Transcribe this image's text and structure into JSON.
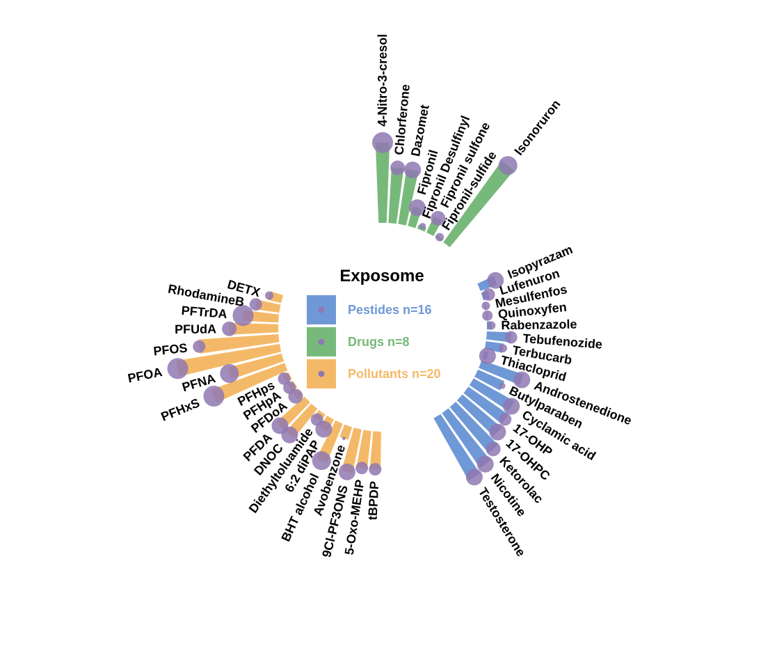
{
  "chart_data": {
    "type": "circular-bar",
    "legend": {
      "title": "Exposome",
      "placement": "center",
      "entries": [
        {
          "label": "Pestides n=16",
          "color": "#6F98D6"
        },
        {
          "label": "Drugs n=8",
          "color": "#77B97A"
        },
        {
          "label": "Pollutants n=20",
          "color": "#F4B968"
        }
      ]
    },
    "bubble_color": "#8F78B2",
    "groups": [
      {
        "name": "Drugs",
        "color": "#77B97A",
        "items": [
          {
            "label": "4-Nitro-3-cresol",
            "value": 3.6,
            "size": 5
          },
          {
            "label": "Chlorferone",
            "value": 2.5,
            "size": 3.5
          },
          {
            "label": "Dazomet",
            "value": 2.5,
            "size": 4
          },
          {
            "label": "Fipronil",
            "value": 0.9,
            "size": 4
          },
          {
            "label": "Fipronil Desulfinyl",
            "value": 0.2,
            "size": 1.5
          },
          {
            "label": "Fipronil sulfone",
            "value": 0.8,
            "size": 3.5
          },
          {
            "label": "Fipronil-sulfide",
            "value": 0.1,
            "size": 2
          },
          {
            "label": "Isonoruron",
            "value": 4.5,
            "size": 4.5
          }
        ]
      },
      {
        "name": "Pestides",
        "color": "#6F98D6",
        "items": [
          {
            "label": "Isopyrazam",
            "value": 0.8,
            "size": 4
          },
          {
            "label": "Lufenuron",
            "value": 0.3,
            "size": 3
          },
          {
            "label": "Mesulfenfos",
            "value": 0.05,
            "size": 2
          },
          {
            "label": "Quinoxyfen",
            "value": 0.05,
            "size": 2.5
          },
          {
            "label": "Rabenzazole",
            "value": 0.2,
            "size": 2
          },
          {
            "label": "Tebufenozide",
            "value": 1.1,
            "size": 3
          },
          {
            "label": "Terbucarb",
            "value": 0.8,
            "size": 2
          },
          {
            "label": "Thiacloprid",
            "value": 0.2,
            "size": 4
          },
          {
            "label": "Androstenedione",
            "value": 2.0,
            "size": 4
          },
          {
            "label": "Butylparaben",
            "value": 1.3,
            "size": 1.5
          },
          {
            "label": "Cyclamic acid",
            "value": 2.1,
            "size": 4
          },
          {
            "label": "17-OHP",
            "value": 2.2,
            "size": 3
          },
          {
            "label": "17-OHPC",
            "value": 2.3,
            "size": 4
          },
          {
            "label": "Ketorolac",
            "value": 2.7,
            "size": 3.5
          },
          {
            "label": "Nicotine",
            "value": 3.0,
            "size": 4
          },
          {
            "label": "Testosterone",
            "value": 3.2,
            "size": 4
          }
        ]
      },
      {
        "name": "Pollutants",
        "color": "#F4B968",
        "items": [
          {
            "label": "tBPDP",
            "value": 1.7,
            "size": 3
          },
          {
            "label": "5-Oxo-MEHP",
            "value": 1.7,
            "size": 3
          },
          {
            "label": "9Cl-PF3ONS",
            "value": 2.0,
            "size": 4
          },
          {
            "label": "Avobenzone",
            "value": 0.6,
            "size": 0.8
          },
          {
            "label": "BHT alcohol",
            "value": 1.9,
            "size": 4.5
          },
          {
            "label": "6:2 diPAP",
            "value": 0.6,
            "size": 4
          },
          {
            "label": "Diethyltoluamide",
            "value": 0.4,
            "size": 3
          },
          {
            "label": "DNOC",
            "value": 1.7,
            "size": 4
          },
          {
            "label": "PFDA",
            "value": 1.7,
            "size": 4
          },
          {
            "label": "PFDoA",
            "value": 0.3,
            "size": 3.5
          },
          {
            "label": "PFHpA",
            "value": 0.3,
            "size": 3
          },
          {
            "label": "PFHps",
            "value": 0.3,
            "size": 3
          },
          {
            "label": "PFHxS",
            "value": 3.5,
            "size": 5
          },
          {
            "label": "PFNA",
            "value": 2.5,
            "size": 4.5
          },
          {
            "label": "PFOA",
            "value": 4.7,
            "size": 5
          },
          {
            "label": "PFOS",
            "value": 3.6,
            "size": 3
          },
          {
            "label": "PFUdA",
            "value": 2.2,
            "size": 3.5
          },
          {
            "label": "PFTrDA",
            "value": 1.6,
            "size": 5
          },
          {
            "label": "RhodamineB",
            "value": 1.1,
            "size": 3
          },
          {
            "label": "DETX",
            "value": 0.6,
            "size": 2
          }
        ]
      }
    ]
  }
}
